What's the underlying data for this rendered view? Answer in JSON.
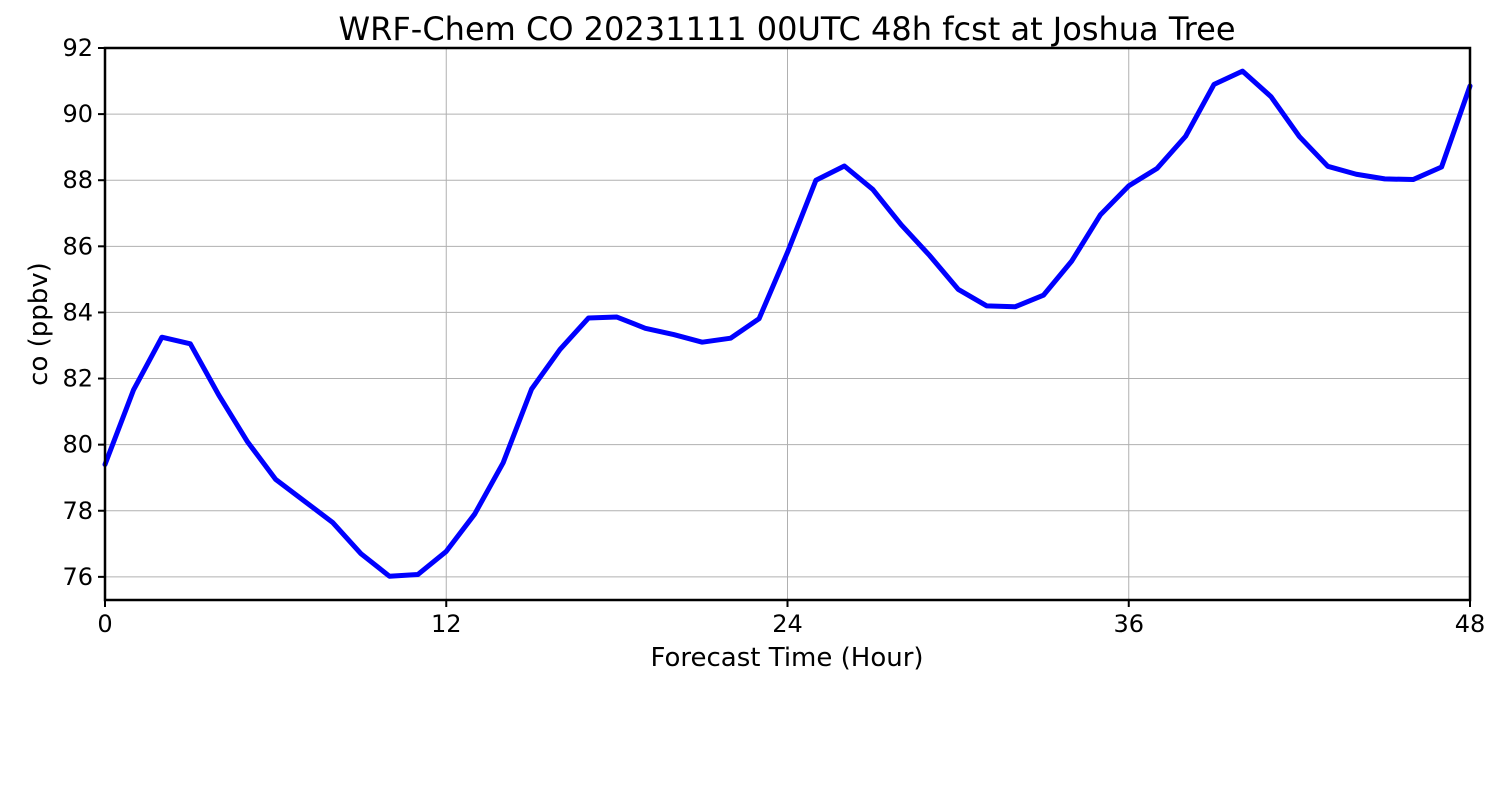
{
  "chart_data": {
    "type": "line",
    "title": "WRF-Chem CO  20231111 00UTC 48h fcst at Joshua Tree",
    "xlabel": "Forecast Time (Hour)",
    "ylabel": "co  (ppbv)",
    "xlim": [
      0,
      48
    ],
    "ylim": [
      75.3,
      92
    ],
    "xticks": [
      0,
      12,
      24,
      36,
      48
    ],
    "yticks": [
      76,
      78,
      80,
      82,
      84,
      86,
      88,
      90,
      92
    ],
    "grid": true,
    "series": [
      {
        "color": "#0000ff",
        "x": [
          0,
          1,
          2,
          3,
          4,
          5,
          6,
          7,
          8,
          9,
          10,
          11,
          12,
          13,
          14,
          15,
          16,
          17,
          18,
          19,
          20,
          21,
          22,
          23,
          24,
          25,
          26,
          27,
          28,
          29,
          30,
          31,
          32,
          33,
          34,
          35,
          36,
          37,
          38,
          39,
          40,
          41,
          42,
          43,
          44,
          45,
          46,
          47,
          48
        ],
        "values": [
          79.4,
          81.65,
          83.25,
          83.05,
          81.5,
          80.1,
          78.95,
          78.3,
          77.65,
          76.7,
          76.02,
          76.07,
          76.77,
          77.9,
          79.45,
          81.68,
          82.88,
          83.83,
          83.86,
          83.52,
          83.33,
          83.1,
          83.22,
          83.81,
          85.82,
          88.0,
          88.43,
          87.72,
          86.65,
          85.72,
          84.7,
          84.2,
          84.17,
          84.52,
          85.56,
          86.95,
          87.83,
          88.36,
          89.33,
          90.9,
          91.3,
          90.53,
          89.32,
          88.42,
          88.18,
          88.04,
          88.02,
          88.4,
          90.85
        ]
      }
    ]
  }
}
